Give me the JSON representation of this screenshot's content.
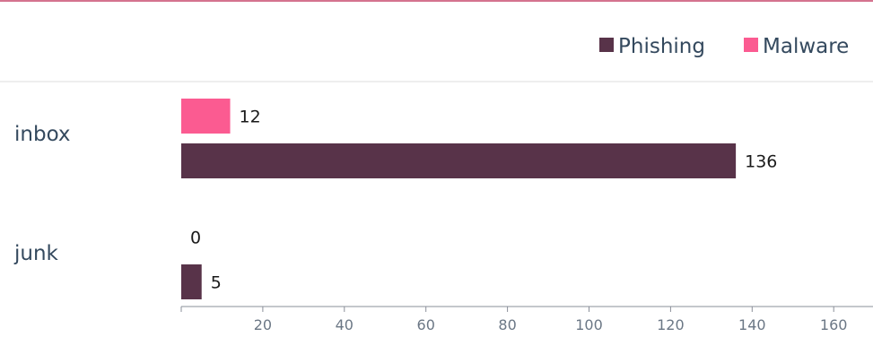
{
  "colors": {
    "accent_line": "#d4738f",
    "divider": "#dcdcdc",
    "axis": "#8a8f99",
    "tick_label": "#6b7785",
    "category_label": "#34495e",
    "legend_text": "#34495e",
    "value_label": "#1a1a1a"
  },
  "chart_data": {
    "type": "bar",
    "orientation": "horizontal",
    "categories": [
      "inbox",
      "junk"
    ],
    "series": [
      {
        "name": "Malware",
        "color": "#fb5b91",
        "values": [
          12,
          0
        ]
      },
      {
        "name": "Phishing",
        "color": "#583349",
        "values": [
          136,
          5
        ]
      }
    ],
    "legend": {
      "position": "top-right",
      "order": [
        "Phishing",
        "Malware"
      ]
    },
    "x_ticks": [
      20,
      40,
      60,
      80,
      100,
      120,
      140,
      160
    ],
    "xlim": [
      0,
      170
    ],
    "grid": false,
    "title": "",
    "xlabel": "",
    "ylabel": ""
  }
}
